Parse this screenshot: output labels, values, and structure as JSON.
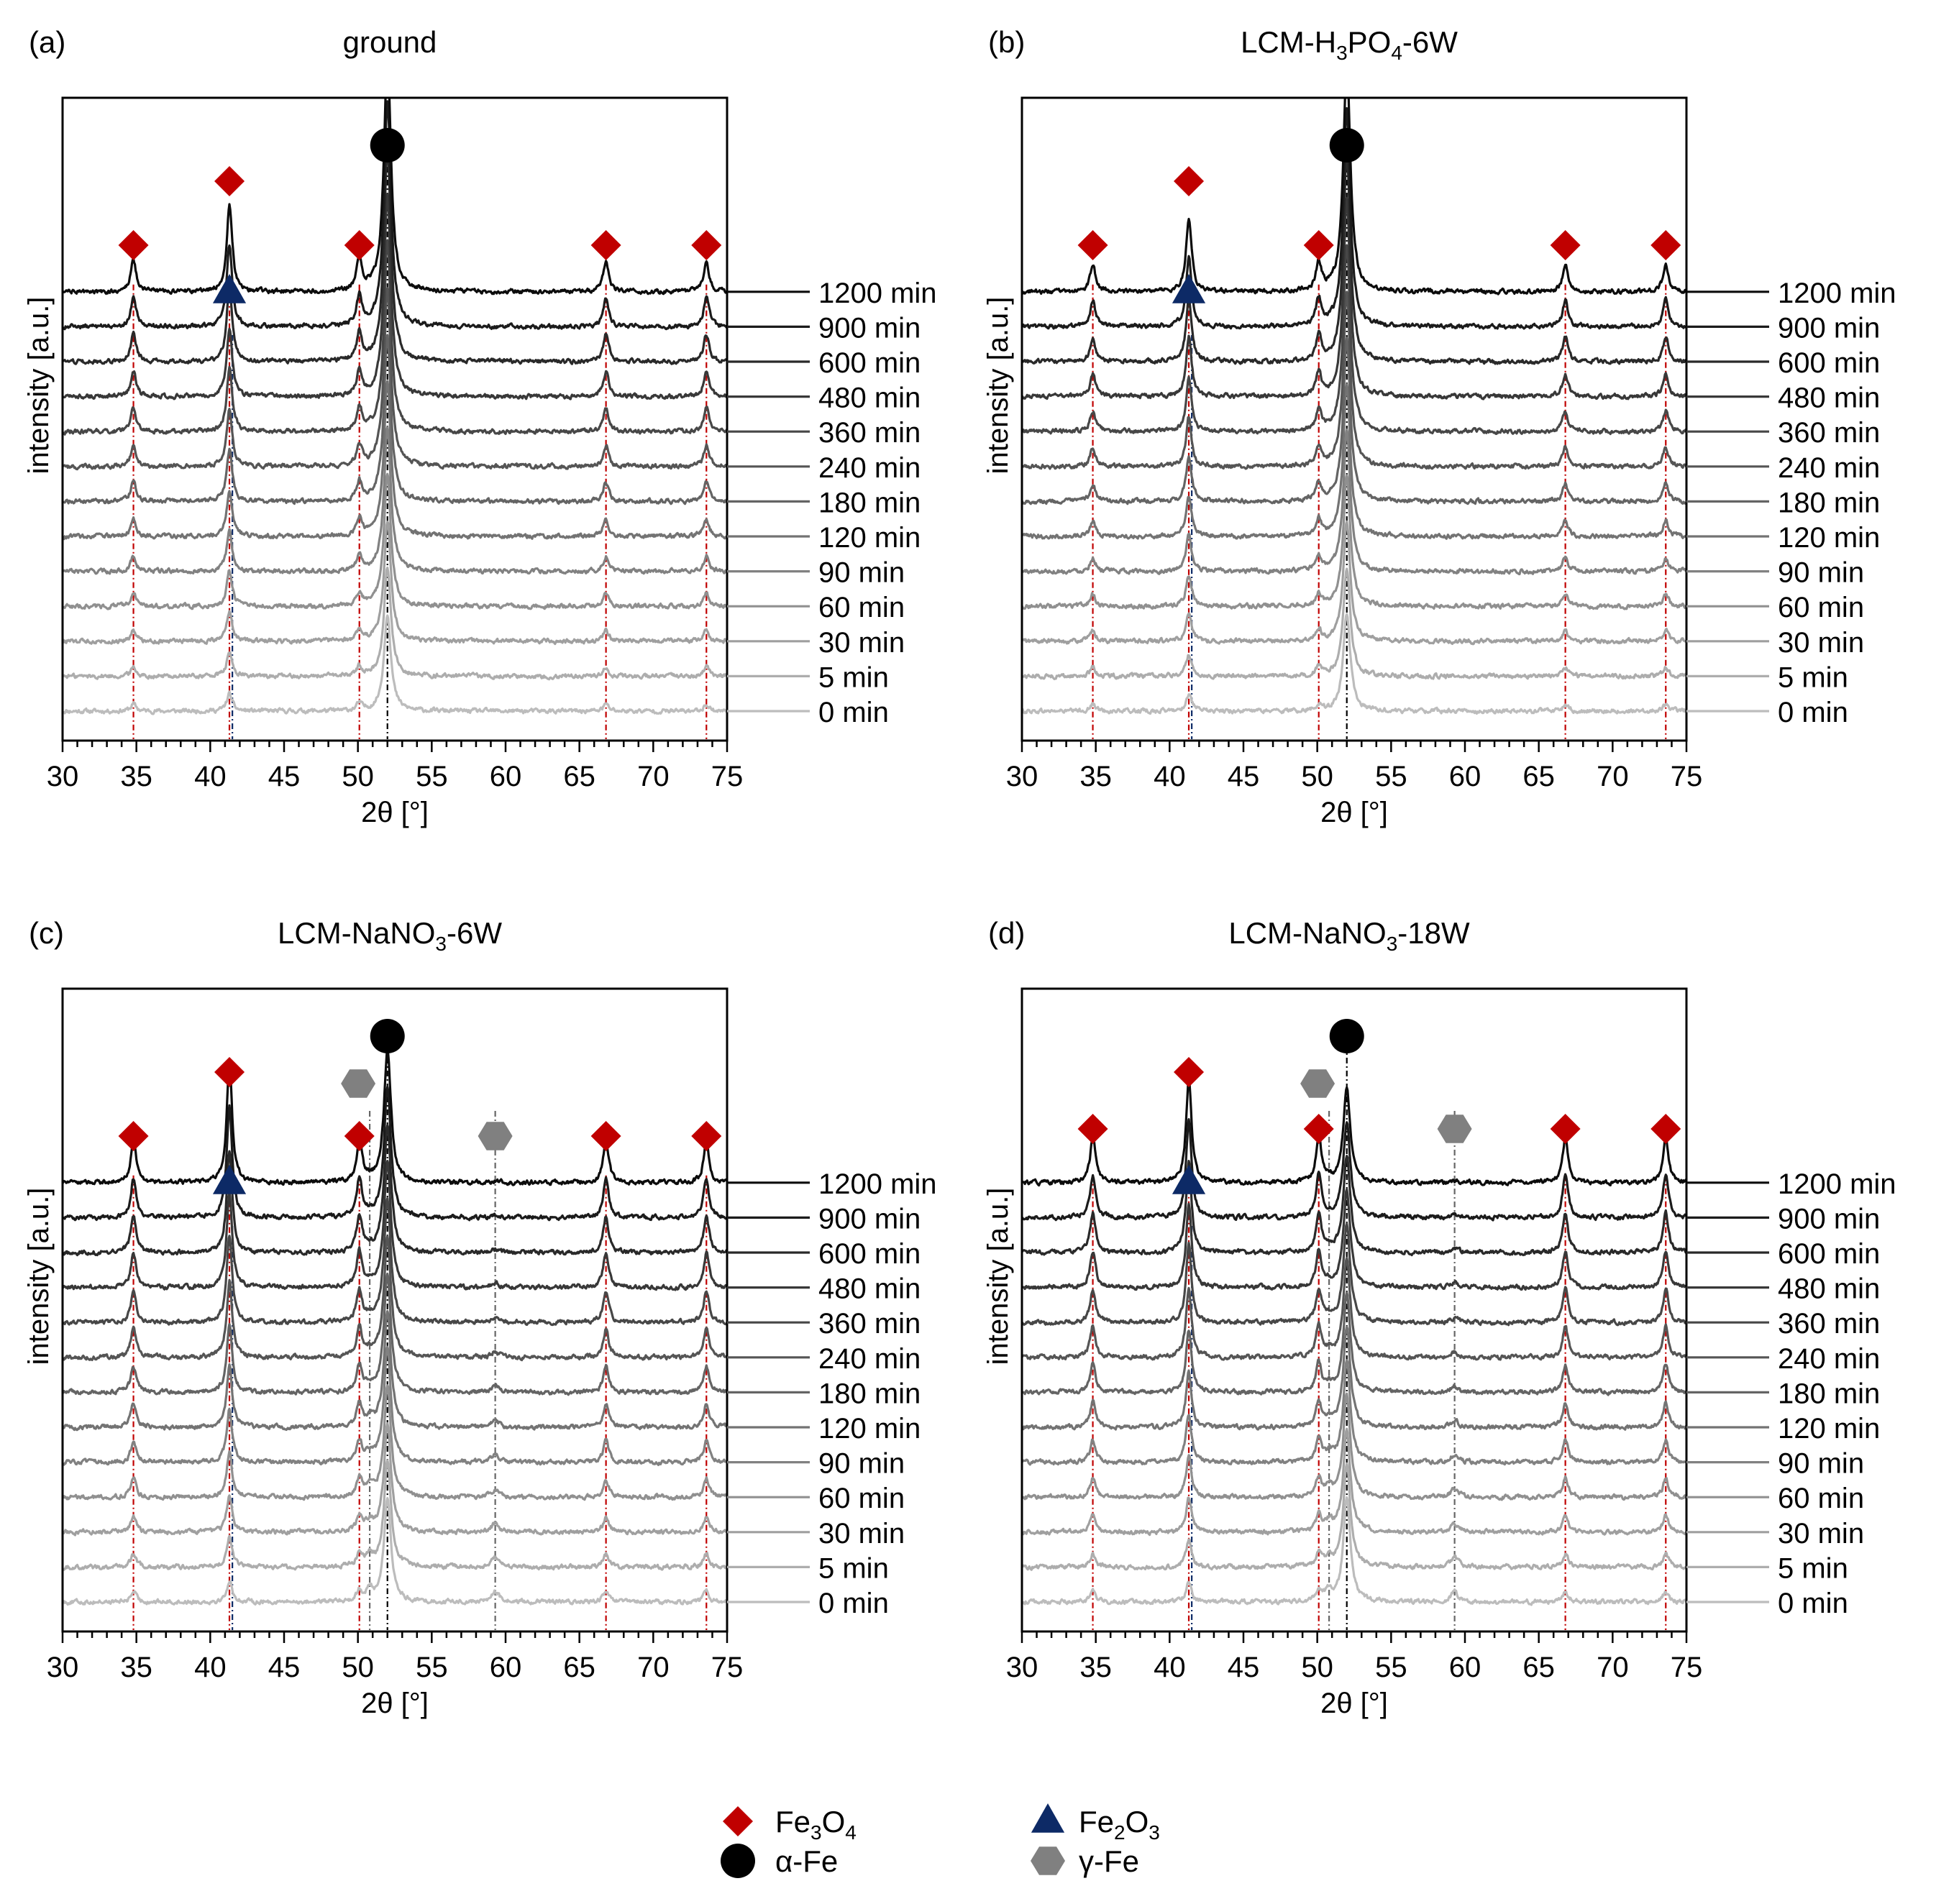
{
  "figure": {
    "legend": {
      "items": [
        {
          "key": "fe3o4",
          "label_main": "Fe",
          "label_sub1": "3",
          "label_mid": "O",
          "label_sub2": "4",
          "marker": "diamond",
          "color": "#c00000"
        },
        {
          "key": "fe2o3",
          "label_main": "Fe",
          "label_sub1": "2",
          "label_mid": "O",
          "label_sub2": "3",
          "marker": "triangle",
          "color": "#0d2a66"
        },
        {
          "key": "alpha_fe",
          "label_text": "α-Fe",
          "marker": "circle",
          "color": "#000000"
        },
        {
          "key": "gamma_fe",
          "label_text": "γ-Fe",
          "marker": "hexagon",
          "color": "#808080"
        }
      ]
    }
  },
  "chart_data": [
    {
      "type": "line",
      "panel_label": "(a)",
      "title": "ground",
      "title_parts": {
        "main": "ground",
        "sub": "",
        "tail": ""
      },
      "xlabel": "2θ [°]",
      "ylabel": "intensity [a.u.]",
      "xlim": [
        30,
        75
      ],
      "xticks": [
        30,
        35,
        40,
        45,
        50,
        55,
        60,
        65,
        70,
        75
      ],
      "series_labels": [
        "0 min",
        "5 min",
        "30 min",
        "60 min",
        "90 min",
        "120 min",
        "180 min",
        "240 min",
        "360 min",
        "480 min",
        "600 min",
        "900 min",
        "1200 min"
      ],
      "fe3o4_peaks": [
        34.8,
        41.3,
        50.1,
        66.8,
        73.6
      ],
      "fe2o3_peaks": [
        41.3
      ],
      "alpha_fe_peaks": [
        52.0
      ],
      "gamma_fe_peaks": [],
      "peak_height_start": {
        "fe3o4": 0.2,
        "fe2o3": 0.5,
        "alpha_fe": 2.8,
        "gamma_fe": 0
      },
      "peak_height_end": {
        "fe3o4": 0.9,
        "fe2o3": 2.5,
        "alpha_fe": 6.8,
        "gamma_fe": 0
      }
    },
    {
      "type": "line",
      "panel_label": "(b)",
      "title": "LCM-H3PO4-6W",
      "title_parts": {
        "main": "LCM-H",
        "sub": "3",
        "tail": "PO",
        "sub2": "4",
        "tail2": "-6W"
      },
      "xlabel": "2θ [°]",
      "ylabel": "intensity [a.u.]",
      "xlim": [
        30,
        75
      ],
      "xticks": [
        30,
        35,
        40,
        45,
        50,
        55,
        60,
        65,
        70,
        75
      ],
      "series_labels": [
        "0 min",
        "5 min",
        "30 min",
        "60 min",
        "90 min",
        "120 min",
        "180 min",
        "240 min",
        "360 min",
        "480 min",
        "600 min",
        "900 min",
        "1200 min"
      ],
      "fe3o4_peaks": [
        34.8,
        41.3,
        50.1,
        66.8,
        73.6
      ],
      "fe2o3_peaks": [
        41.3
      ],
      "alpha_fe_peaks": [
        52.0
      ],
      "gamma_fe_peaks": [],
      "peak_height_start": {
        "fe3o4": 0.2,
        "fe2o3": 0.5,
        "alpha_fe": 2.8,
        "gamma_fe": 0
      },
      "peak_height_end": {
        "fe3o4": 0.8,
        "fe2o3": 2.1,
        "alpha_fe": 6.6,
        "gamma_fe": 0
      }
    },
    {
      "type": "line",
      "panel_label": "(c)",
      "title": "LCM-NaNO3-6W",
      "title_parts": {
        "main": "LCM-NaNO",
        "sub": "3",
        "tail": "-6W"
      },
      "xlabel": "2θ [°]",
      "ylabel": "intensity [a.u.]",
      "xlim": [
        30,
        75
      ],
      "xticks": [
        30,
        35,
        40,
        45,
        50,
        55,
        60,
        65,
        70,
        75
      ],
      "series_labels": [
        "0 min",
        "5 min",
        "30 min",
        "60 min",
        "90 min",
        "120 min",
        "180 min",
        "240 min",
        "360 min",
        "480 min",
        "600 min",
        "900 min",
        "1200 min"
      ],
      "fe3o4_peaks": [
        34.8,
        41.3,
        50.1,
        66.8,
        73.6
      ],
      "fe2o3_peaks": [
        41.3
      ],
      "alpha_fe_peaks": [
        52.0
      ],
      "gamma_fe_peaks": [
        50.8,
        59.3
      ],
      "peak_height_start": {
        "fe3o4": 0.3,
        "fe2o3": 0.6,
        "alpha_fe": 3.0,
        "gamma_fe": 0.3
      },
      "peak_height_end": {
        "fe3o4": 1.2,
        "fe2o3": 3.4,
        "alpha_fe": 3.8,
        "gamma_fe": 0.05
      }
    },
    {
      "type": "line",
      "panel_label": "(d)",
      "title": "LCM-NaNO3-18W",
      "title_parts": {
        "main": "LCM-NaNO",
        "sub": "3",
        "tail": "-18W"
      },
      "xlabel": "2θ [°]",
      "ylabel": "intensity [a.u.]",
      "xlim": [
        30,
        75
      ],
      "xticks": [
        30,
        35,
        40,
        45,
        50,
        55,
        60,
        65,
        70,
        75
      ],
      "series_labels": [
        "0 min",
        "5 min",
        "30 min",
        "60 min",
        "90 min",
        "120 min",
        "180 min",
        "240 min",
        "360 min",
        "480 min",
        "600 min",
        "900 min",
        "1200 min"
      ],
      "fe3o4_peaks": [
        34.8,
        41.3,
        50.1,
        66.8,
        73.6
      ],
      "fe2o3_peaks": [
        41.3
      ],
      "alpha_fe_peaks": [
        52.0
      ],
      "gamma_fe_peaks": [
        50.8,
        59.3
      ],
      "peak_height_start": {
        "fe3o4": 0.3,
        "fe2o3": 0.6,
        "alpha_fe": 3.0,
        "gamma_fe": 0.3
      },
      "peak_height_end": {
        "fe3o4": 1.3,
        "fe2o3": 3.0,
        "alpha_fe": 2.7,
        "gamma_fe": 0.05
      }
    }
  ]
}
